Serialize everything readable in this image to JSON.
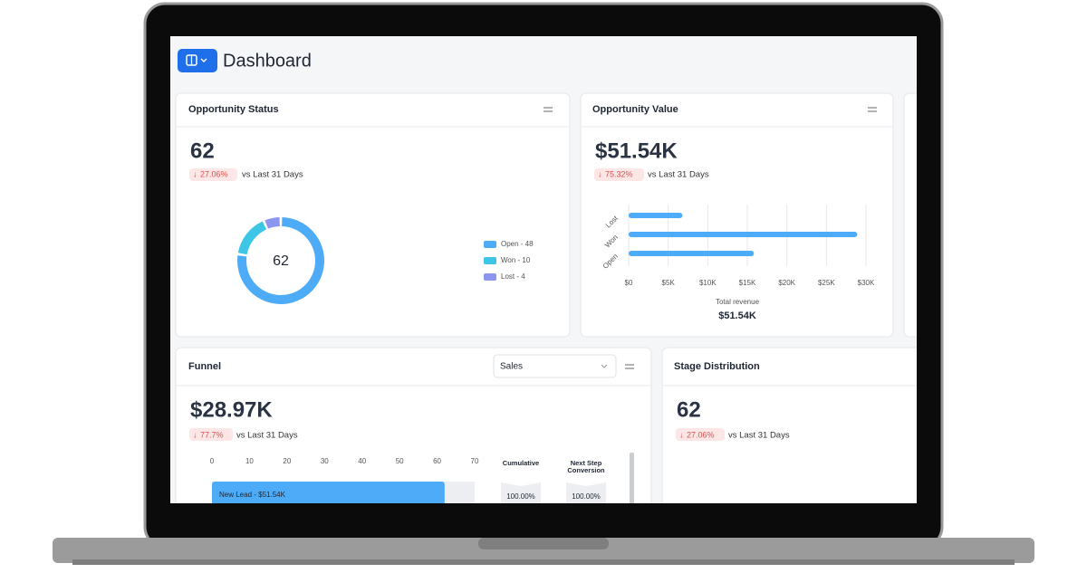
{
  "header": {
    "title": "Dashboard"
  },
  "cards": [
    {
      "title": "Opportunity Status",
      "metric": "62",
      "change": "27.06%",
      "comparison": "vs Last 31 Days",
      "chart_data": {
        "type": "donut",
        "center_label": "62",
        "categories": [
          "Open - 48",
          "Won - 10",
          "Lost - 4"
        ],
        "values": [
          48,
          10,
          4
        ],
        "colors": [
          "#4dabf7",
          "#3dc6e6",
          "#8c96ee"
        ]
      }
    },
    {
      "title": "Opportunity Value",
      "metric": "$51.54K",
      "change": "75.32%",
      "comparison": "vs Last 31 Days",
      "chart_data": {
        "type": "hbar",
        "categories": [
          "Lost",
          "Won",
          "Open"
        ],
        "values": [
          6800,
          28900,
          15840
        ],
        "color": "#4dabf7",
        "xlim": [
          0,
          30000
        ],
        "xticks": [
          {
            "value": 0,
            "label": "$0"
          },
          {
            "value": 5000,
            "label": "$5K"
          },
          {
            "value": 10000,
            "label": "$10K"
          },
          {
            "value": 15000,
            "label": "$15K"
          },
          {
            "value": 20000,
            "label": "$20K"
          },
          {
            "value": 25000,
            "label": "$25K"
          },
          {
            "value": 30000,
            "label": "$30K"
          }
        ],
        "grid": true,
        "x_label": "Total revenue",
        "total": "$51.54K"
      }
    },
    {
      "title": "Funnel",
      "dropdown": "Sales",
      "metric": "$28.97K",
      "change": "77.7%",
      "comparison": "vs Last 31 Days",
      "chart_data": {
        "type": "funnel",
        "categories": [
          "New Lead - $51.54K"
        ],
        "values": [
          62
        ],
        "color": "#4dabf7",
        "xlim": [
          0,
          70
        ],
        "xticks": [
          0,
          10,
          20,
          30,
          40,
          50,
          60,
          70
        ],
        "columns": [
          {
            "name": "Cumulative",
            "values": [
              "100.00%"
            ]
          },
          {
            "name": "Next Step Conversion",
            "values": [
              "100.00%"
            ]
          }
        ]
      }
    },
    {
      "title": "Stage Distribution",
      "metric": "62",
      "change": "27.06%",
      "comparison": "vs Last 31 Days"
    }
  ]
}
